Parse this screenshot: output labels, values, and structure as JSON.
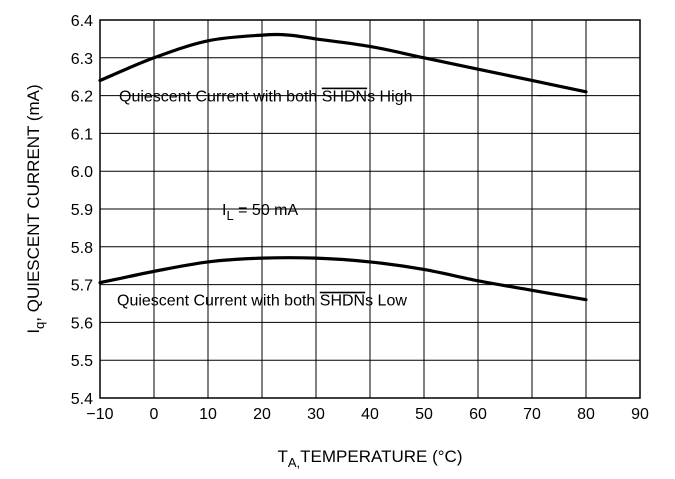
{
  "chart_data": {
    "type": "line",
    "xlabel_main": "T",
    "xlabel_sub": "A,",
    "xlabel_rest": "TEMPERATURE (°C)",
    "ylabel_main": "I",
    "ylabel_sub": "q",
    "ylabel_rest": ", QUIESCENT CURRENT (mA)",
    "xlim": [
      -10,
      90
    ],
    "ylim": [
      5.4,
      6.4
    ],
    "x_ticks": [
      -10,
      0,
      10,
      20,
      30,
      40,
      50,
      60,
      70,
      80,
      90
    ],
    "x_tick_labels": [
      "−10",
      "0",
      "10",
      "20",
      "30",
      "40",
      "50",
      "60",
      "70",
      "80",
      "90"
    ],
    "y_ticks": [
      5.4,
      5.5,
      5.6,
      5.7,
      5.8,
      5.9,
      6.0,
      6.1,
      6.2,
      6.3,
      6.4
    ],
    "y_tick_labels": [
      "5.4",
      "5.5",
      "5.6",
      "5.7",
      "5.8",
      "5.9",
      "6.0",
      "6.1",
      "6.2",
      "6.3",
      "6.4"
    ],
    "grid": true,
    "series": [
      {
        "label_prefix": "Quiescent Current with both ",
        "label_overline": "SHDN",
        "label_suffix": "s High",
        "x": [
          -10,
          0,
          10,
          20,
          25,
          30,
          40,
          50,
          60,
          70,
          80
        ],
        "y": [
          6.24,
          6.3,
          6.345,
          6.36,
          6.36,
          6.35,
          6.33,
          6.3,
          6.27,
          6.24,
          6.21
        ]
      },
      {
        "label_prefix": "Quiescent Current with both ",
        "label_overline": "SHDN",
        "label_suffix": "s Low",
        "x": [
          -10,
          0,
          10,
          20,
          30,
          40,
          50,
          60,
          70,
          80
        ],
        "y": [
          5.705,
          5.735,
          5.76,
          5.77,
          5.77,
          5.76,
          5.74,
          5.71,
          5.685,
          5.66
        ]
      }
    ],
    "annotation": {
      "main": "I",
      "sub": "L",
      "rest": " = 50 mA"
    }
  }
}
